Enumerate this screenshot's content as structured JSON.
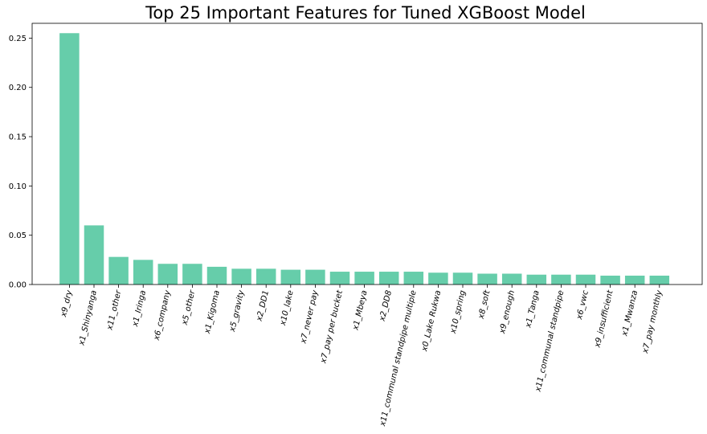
{
  "chart_data": {
    "type": "bar",
    "title": "Top 25 Important Features for Tuned XGBoost Model",
    "xlabel": "",
    "ylabel": "",
    "ylim": [
      0,
      0.265
    ],
    "yticks": [
      "0.00",
      "0.05",
      "0.10",
      "0.15",
      "0.20",
      "0.25"
    ],
    "grid": false,
    "bar_color": "#66cdaa",
    "categories": [
      "x9_dry",
      "x1_Shinyanga",
      "x11_other",
      "x1_Iringa",
      "x6_company",
      "x5_other",
      "x1_Kigoma",
      "x5_gravity",
      "x2_DD1",
      "x10_lake",
      "x7_never pay",
      "x7_pay per bucket",
      "x1_Mbeya",
      "x2_DD8",
      "x11_communal standpipe multiple",
      "x0_Lake Rukwa",
      "x10_spring",
      "x8_soft",
      "x9_enough",
      "x1_Tanga",
      "x11_communal standpipe",
      "x6_vwc",
      "x9_insufficient",
      "x1_Mwanza",
      "x7_pay monthly"
    ],
    "values": [
      0.255,
      0.06,
      0.028,
      0.025,
      0.021,
      0.021,
      0.018,
      0.016,
      0.016,
      0.015,
      0.015,
      0.013,
      0.013,
      0.013,
      0.013,
      0.012,
      0.012,
      0.011,
      0.011,
      0.01,
      0.01,
      0.01,
      0.009,
      0.009,
      0.009
    ]
  }
}
